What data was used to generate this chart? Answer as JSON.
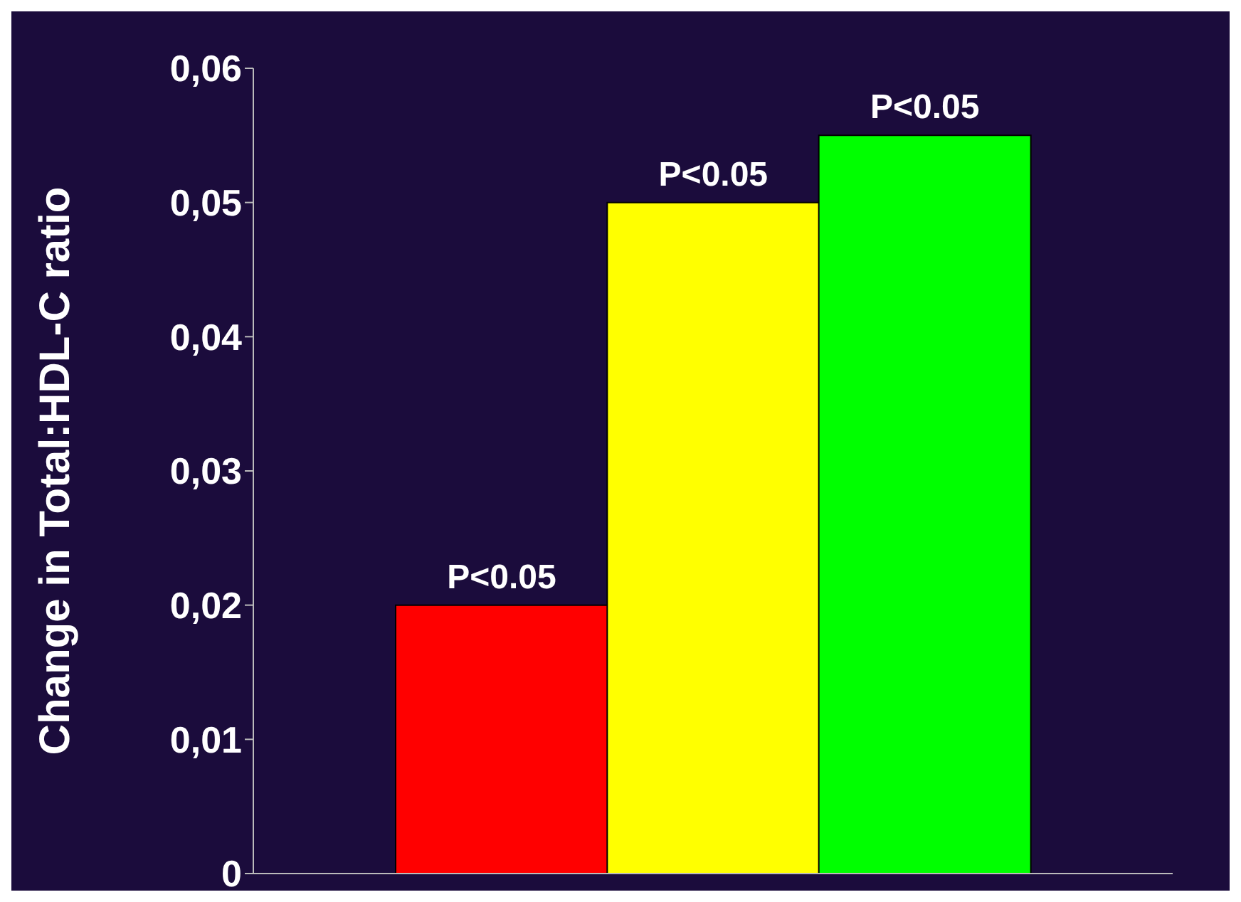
{
  "chart_data": {
    "type": "bar",
    "ylabel": "Change in Total:HDL-C ratio",
    "categories": [
      null,
      null,
      null
    ],
    "values": [
      0.02,
      0.05,
      0.055
    ],
    "colors": [
      "#ff0000",
      "#ffff00",
      "#00ff00"
    ],
    "ylim": [
      0,
      0.06
    ],
    "yticks": [
      0,
      {
        "value": 0.01,
        "label": "0,01"
      },
      {
        "value": 0.02,
        "label": "0,02"
      },
      {
        "value": 0.03,
        "label": "0,03"
      },
      {
        "value": 0.04,
        "label": "0,04"
      },
      {
        "value": 0.05,
        "label": "0,05"
      },
      {
        "value": 0.06,
        "label": "0,06"
      }
    ],
    "annotations": [
      {
        "text": "P<0.05",
        "y": 0.02
      },
      {
        "text": "P<0.05",
        "y": 0.05
      },
      {
        "text": "P<0.05",
        "y": 0.055
      }
    ],
    "grid": false,
    "legend": false
  }
}
